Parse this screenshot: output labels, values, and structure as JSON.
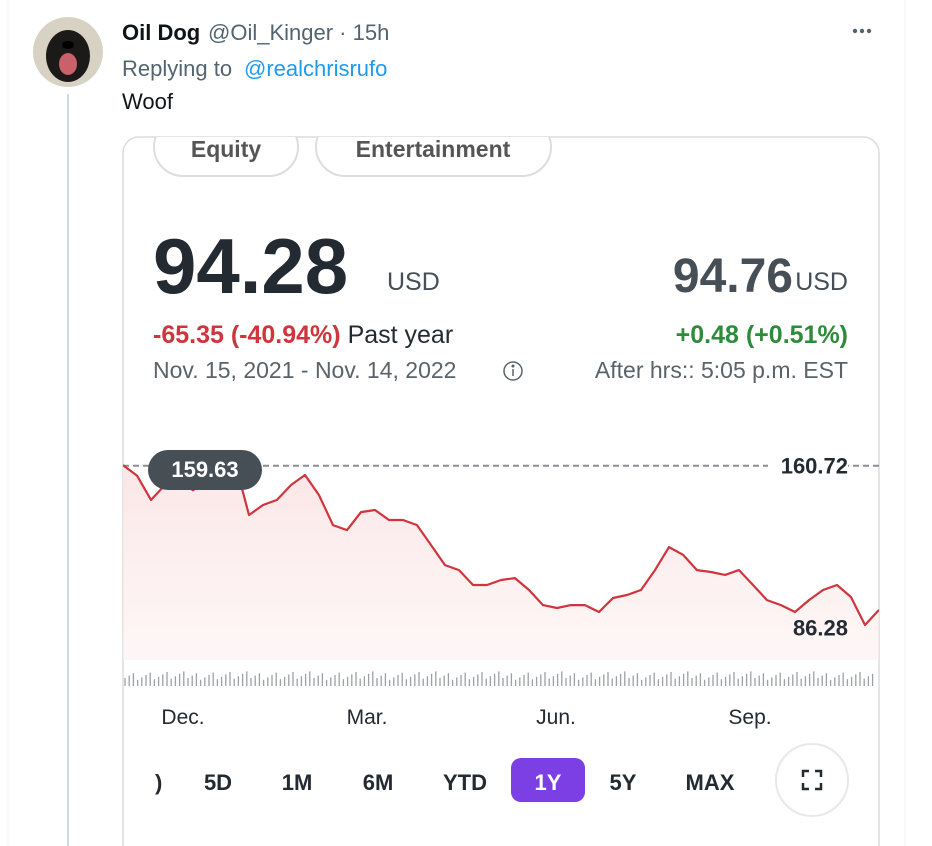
{
  "tweet": {
    "name": "Oil Dog",
    "meta": "@Oil_Kinger · 15h",
    "replying_label": "Replying to",
    "reply_to": "@realchrisrufo",
    "text": "Woof"
  },
  "card": {
    "tags": [
      "Equity",
      "Entertainment"
    ],
    "price": "94.28",
    "currency": "USD",
    "after_price": "94.76",
    "after_currency": "USD",
    "change": "-65.35 (-40.94%)",
    "change_period": "Past year",
    "after_change": "+0.48 (+0.51%)",
    "date_range": "Nov. 15, 2021 - Nov. 14, 2022",
    "after_hours": "After hrs:: 5:05 p.m. EST",
    "ranges": [
      "5D",
      "1M",
      "6M",
      "YTD",
      "1Y",
      "5Y",
      "MAX"
    ],
    "selected": "1Y"
  },
  "chart_data": {
    "type": "line",
    "color": "#d0343c",
    "x_labels": [
      "Dec.",
      "Mar.",
      "Jun.",
      "Sep."
    ],
    "values": [
      161,
      156,
      144.4,
      151.5,
      154,
      149,
      154.9,
      158.7,
      162.5,
      137.2,
      142,
      144.4,
      151.5,
      156.3,
      146.7,
      132.4,
      130,
      138.6,
      139.6,
      134.8,
      134.8,
      132.4,
      122.9,
      113.3,
      110.9,
      103.8,
      103.8,
      106.2,
      107.1,
      101.4,
      94.2,
      92.8,
      94.2,
      94.2,
      90.9,
      97.6,
      99,
      101.4,
      110.9,
      121.9,
      118.2,
      110.9,
      110,
      108.6,
      110.9,
      103.8,
      96.6,
      94.2,
      90.9,
      96.6,
      101.4,
      103.8,
      98,
      84.7,
      91.9
    ],
    "ylim": [
      68,
      173
    ],
    "reference_value": 160.72,
    "start_label": 159.63,
    "low_label": 86.28
  }
}
